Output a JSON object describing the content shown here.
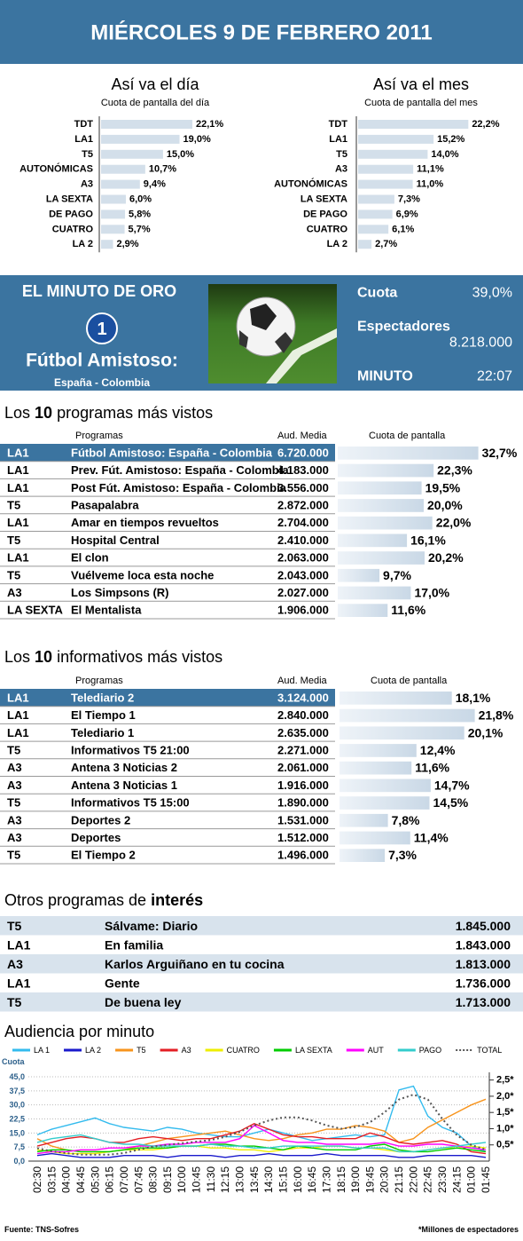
{
  "header": {
    "title": "MIÉRCOLES 9 DE FEBRERO 2011"
  },
  "chart_data": [
    {
      "type": "bar",
      "title": "Así va el día",
      "subtitle": "Cuota de pantalla del día",
      "categories": [
        "TDT",
        "LA1",
        "T5",
        "AUTONÓMICAS",
        "A3",
        "LA SEXTA",
        "DE PAGO",
        "CUATRO",
        "LA 2"
      ],
      "values": [
        22.1,
        19.0,
        15.0,
        10.7,
        9.4,
        6.0,
        5.8,
        5.7,
        2.9
      ],
      "value_labels": [
        "22,1%",
        "19,0%",
        "15,0%",
        "10,7%",
        "9,4%",
        "6,0%",
        "5,8%",
        "5,7%",
        "2,9%"
      ],
      "color": "#d3dfea"
    },
    {
      "type": "bar",
      "title": "Así va el mes",
      "subtitle": "Cuota de pantalla del mes",
      "categories": [
        "TDT",
        "LA1",
        "T5",
        "A3",
        "AUTONÓMICAS",
        "LA SEXTA",
        "DE PAGO",
        "CUATRO",
        "LA 2"
      ],
      "values": [
        22.2,
        15.2,
        14.0,
        11.1,
        11.0,
        7.3,
        6.9,
        6.1,
        2.7
      ],
      "value_labels": [
        "22,2%",
        "15,2%",
        "14,0%",
        "11,1%",
        "11,0%",
        "7,3%",
        "6,9%",
        "6,1%",
        "2,7%"
      ],
      "color": "#d3dfea"
    },
    {
      "type": "line",
      "title": "Audiencia por minuto",
      "ylabel": "Cuota",
      "x": [
        "02:30",
        "03:15",
        "04:00",
        "04:45",
        "05:30",
        "06:15",
        "07:00",
        "07:45",
        "08:30",
        "09:15",
        "10:00",
        "10:45",
        "11:30",
        "12:15",
        "13:00",
        "13:45",
        "14:30",
        "15:15",
        "16:00",
        "16:45",
        "17:30",
        "18:15",
        "19:00",
        "19:45",
        "20:30",
        "21:15",
        "22:00",
        "22:45",
        "23:30",
        "24:15",
        "01:00",
        "01:45"
      ],
      "ylim": [
        0,
        45
      ],
      "yticks": [
        {
          "value": 0,
          "label": "0,0"
        },
        {
          "value": 7.5,
          "label": "7,5"
        },
        {
          "value": 15,
          "label": "15,0"
        },
        {
          "value": 22.5,
          "label": "22,5"
        },
        {
          "value": 30,
          "label": "30,0"
        },
        {
          "value": 37.5,
          "label": "37,5"
        },
        {
          "value": 45,
          "label": "45,0"
        }
      ],
      "y2lim": [
        0,
        2.6
      ],
      "y2ticks": [
        {
          "value": 0.5,
          "label": "0,5*"
        },
        {
          "value": 1,
          "label": "1,0*"
        },
        {
          "value": 1.5,
          "label": "1,5*"
        },
        {
          "value": 2,
          "label": "2,0*"
        },
        {
          "value": 2.5,
          "label": "2,5*"
        }
      ],
      "grid": true,
      "series": [
        {
          "name": "LA 1",
          "color": "#33bbee",
          "values": [
            14,
            17,
            19,
            21,
            23,
            20,
            18,
            17,
            16,
            18,
            17,
            15,
            14,
            13,
            13,
            15,
            17,
            15,
            13,
            11,
            12,
            13,
            14,
            13,
            14,
            38,
            40,
            24,
            18,
            15,
            8,
            5
          ]
        },
        {
          "name": "LA 2",
          "color": "#1a1acc",
          "values": [
            3,
            4,
            3,
            2,
            2,
            2,
            3,
            3,
            3,
            2,
            3,
            3,
            3,
            2,
            3,
            3,
            4,
            3,
            3,
            3,
            4,
            3,
            3,
            3,
            3,
            2,
            2,
            3,
            3,
            3,
            3,
            2
          ]
        },
        {
          "name": "T5",
          "color": "#f7941d",
          "values": [
            12,
            8,
            6,
            5,
            5,
            5,
            6,
            8,
            10,
            12,
            13,
            14,
            15,
            16,
            14,
            12,
            11,
            12,
            14,
            15,
            17,
            17,
            19,
            18,
            16,
            10,
            12,
            18,
            22,
            26,
            30,
            33
          ]
        },
        {
          "name": "A3",
          "color": "#e31e24",
          "values": [
            8,
            10,
            12,
            13,
            12,
            10,
            10,
            12,
            13,
            12,
            11,
            12,
            12,
            14,
            16,
            20,
            17,
            14,
            13,
            13,
            12,
            12,
            12,
            15,
            13,
            10,
            9,
            10,
            11,
            9,
            5,
            4
          ]
        },
        {
          "name": "CUATRO",
          "color": "#eeee00",
          "values": [
            6,
            5,
            4,
            4,
            4,
            5,
            6,
            6,
            6,
            7,
            8,
            8,
            7,
            7,
            6,
            6,
            5,
            6,
            7,
            7,
            8,
            8,
            7,
            7,
            6,
            5,
            5,
            6,
            7,
            7,
            8,
            7
          ]
        },
        {
          "name": "LA SEXTA",
          "color": "#00cc00",
          "values": [
            5,
            6,
            6,
            5,
            5,
            5,
            6,
            7,
            7,
            7,
            8,
            8,
            9,
            9,
            8,
            8,
            7,
            6,
            8,
            7,
            6,
            6,
            6,
            8,
            9,
            6,
            5,
            5,
            6,
            7,
            6,
            5
          ]
        },
        {
          "name": "AUT",
          "color": "#ff00ff",
          "values": [
            4,
            5,
            5,
            6,
            6,
            7,
            7,
            8,
            8,
            9,
            9,
            10,
            10,
            10,
            12,
            19,
            15,
            11,
            10,
            10,
            9,
            9,
            9,
            9,
            10,
            8,
            8,
            9,
            9,
            8,
            7,
            6
          ]
        },
        {
          "name": "PAGO",
          "color": "#33cccc",
          "values": [
            10,
            12,
            13,
            14,
            12,
            10,
            9,
            9,
            8,
            8,
            8,
            8,
            9,
            8,
            8,
            7,
            7,
            8,
            8,
            8,
            8,
            8,
            7,
            7,
            7,
            5,
            5,
            6,
            7,
            8,
            9,
            10
          ]
        },
        {
          "name": "TOTAL",
          "color": "#555555",
          "axis": "y2",
          "values": [
            0.4,
            0.3,
            0.25,
            0.2,
            0.2,
            0.2,
            0.25,
            0.35,
            0.45,
            0.5,
            0.55,
            0.6,
            0.65,
            0.75,
            0.9,
            1.1,
            1.25,
            1.35,
            1.35,
            1.25,
            1.1,
            1.0,
            1.05,
            1.2,
            1.5,
            1.9,
            2.05,
            1.9,
            1.3,
            0.8,
            0.5,
            0.35
          ]
        }
      ]
    }
  ],
  "golden_minute": {
    "title": "EL MINUTO DE ORO",
    "channel": "1",
    "program": "Fútbol Amistoso:",
    "match": "España - Colombia",
    "share_label": "Cuota",
    "share": "39,0%",
    "viewers_label": "Espectadores",
    "viewers": "8.218.000",
    "minute_label": "MINUTO",
    "minute": "22:07"
  },
  "top_programs": {
    "title": [
      "Los",
      "10",
      "programas más vistos"
    ],
    "columns": [
      "Programas",
      "Aud. Media",
      "Cuota de pantalla"
    ],
    "rows": [
      {
        "channel": "LA1",
        "program": "Fútbol Amistoso: España - Colombia",
        "audience": "6.720.000",
        "share": 32.7,
        "share_label": "32,7%"
      },
      {
        "channel": "LA1",
        "program": "Prev. Fút. Amistoso: España - Colombia",
        "audience": "4.183.000",
        "share": 22.3,
        "share_label": "22,3%"
      },
      {
        "channel": "LA1",
        "program": "Post Fút. Amistoso: España - Colombia",
        "audience": "3.556.000",
        "share": 19.5,
        "share_label": "19,5%"
      },
      {
        "channel": "T5",
        "program": "Pasapalabra",
        "audience": "2.872.000",
        "share": 20.0,
        "share_label": "20,0%"
      },
      {
        "channel": "LA1",
        "program": "Amar en tiempos revueltos",
        "audience": "2.704.000",
        "share": 22.0,
        "share_label": "22,0%"
      },
      {
        "channel": "T5",
        "program": "Hospital Central",
        "audience": "2.410.000",
        "share": 16.1,
        "share_label": "16,1%"
      },
      {
        "channel": "LA1",
        "program": "El clon",
        "audience": "2.063.000",
        "share": 20.2,
        "share_label": "20,2%"
      },
      {
        "channel": "T5",
        "program": "Vuélveme loca esta noche",
        "audience": "2.043.000",
        "share": 9.7,
        "share_label": "9,7%"
      },
      {
        "channel": "A3",
        "program": "Los Simpsons (R)",
        "audience": "2.027.000",
        "share": 17.0,
        "share_label": "17,0%"
      },
      {
        "channel": "LA SEXTA",
        "program": "El Mentalista",
        "audience": "1.906.000",
        "share": 11.6,
        "share_label": "11,6%"
      }
    ]
  },
  "top_news": {
    "title": [
      "Los",
      "10",
      "informativos más vistos"
    ],
    "columns": [
      "Programas",
      "Aud. Media",
      "Cuota de pantalla"
    ],
    "rows": [
      {
        "channel": "LA1",
        "program": "Telediario 2",
        "audience": "3.124.000",
        "share": 18.1,
        "share_label": "18,1%"
      },
      {
        "channel": "LA1",
        "program": "El Tiempo 1",
        "audience": "2.840.000",
        "share": 21.8,
        "share_label": "21,8%"
      },
      {
        "channel": "LA1",
        "program": "Telediario 1",
        "audience": "2.635.000",
        "share": 20.1,
        "share_label": "20,1%"
      },
      {
        "channel": "T5",
        "program": "Informativos T5 21:00",
        "audience": "2.271.000",
        "share": 12.4,
        "share_label": "12,4%"
      },
      {
        "channel": "A3",
        "program": "Antena 3 Noticias 2",
        "audience": "2.061.000",
        "share": 11.6,
        "share_label": "11,6%"
      },
      {
        "channel": "A3",
        "program": "Antena 3 Noticias 1",
        "audience": "1.916.000",
        "share": 14.7,
        "share_label": "14,7%"
      },
      {
        "channel": "T5",
        "program": "Informativos T5 15:00",
        "audience": "1.890.000",
        "share": 14.5,
        "share_label": "14,5%"
      },
      {
        "channel": "A3",
        "program": "Deportes 2",
        "audience": "1.531.000",
        "share": 7.8,
        "share_label": "7,8%"
      },
      {
        "channel": "A3",
        "program": "Deportes",
        "audience": "1.512.000",
        "share": 11.4,
        "share_label": "11,4%"
      },
      {
        "channel": "T5",
        "program": "El Tiempo 2",
        "audience": "1.496.000",
        "share": 7.3,
        "share_label": "7,3%"
      }
    ]
  },
  "other_programs": {
    "title": [
      "Otros programas de",
      "interés"
    ],
    "rows": [
      {
        "channel": "T5",
        "program": "Sálvame: Diario",
        "audience": "1.845.000"
      },
      {
        "channel": "LA1",
        "program": "En familia",
        "audience": "1.843.000"
      },
      {
        "channel": "A3",
        "program": "Karlos Arguiñano en tu cocina",
        "audience": "1.813.000"
      },
      {
        "channel": "LA1",
        "program": "Gente",
        "audience": "1.736.000"
      },
      {
        "channel": "T5",
        "program": "De buena ley",
        "audience": "1.713.000"
      }
    ]
  },
  "footer": {
    "source": "Fuente: TNS-Sofres",
    "note": "*Millones de espectadores"
  }
}
